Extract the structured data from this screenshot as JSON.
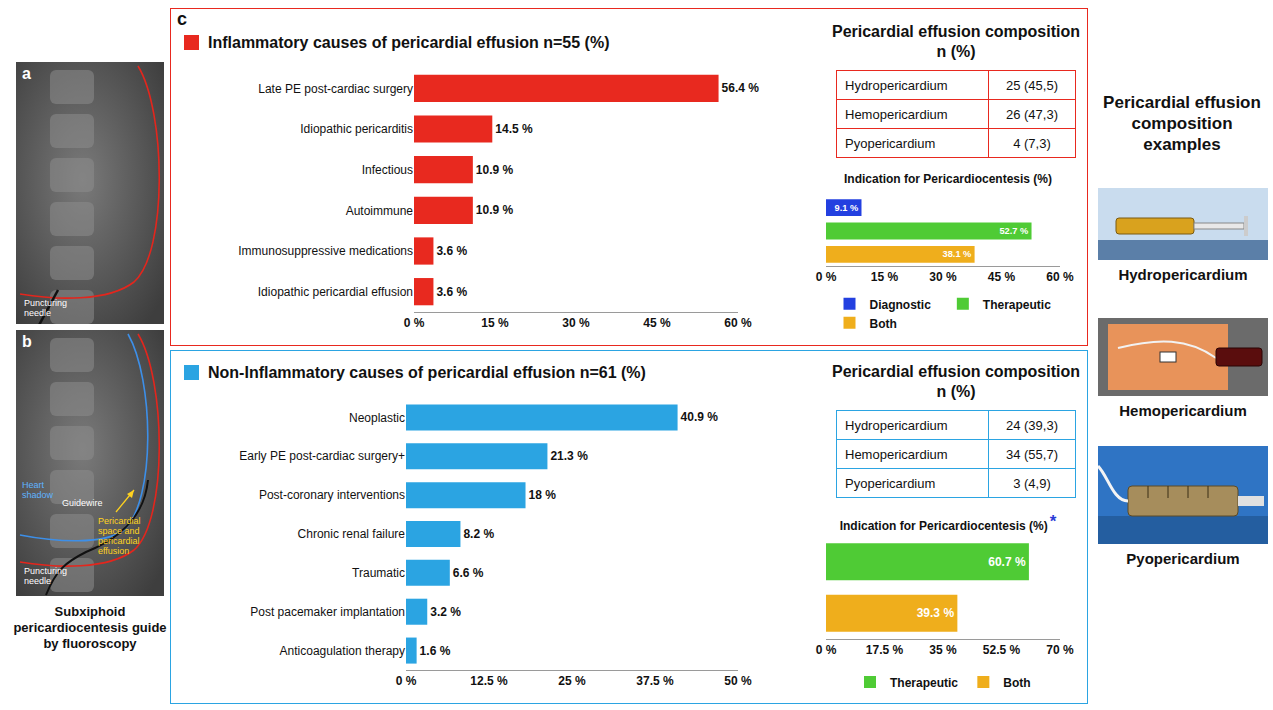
{
  "panel_label": "c",
  "chart_data": [
    {
      "type": "bar",
      "title": "Inflammatory causes of pericardial effusion n=55 (%)",
      "orientation": "horizontal",
      "categories": [
        "Late PE post-cardiac surgery",
        "Idiopathic pericarditis",
        "Infectious",
        "Autoimmune",
        "Immunosuppressive medications",
        "Idiopathic pericardial effusion"
      ],
      "values": [
        56.4,
        14.5,
        10.9,
        10.9,
        3.6,
        3.6
      ],
      "value_labels": [
        "56.4 %",
        "14.5 %",
        "10.9 %",
        "10.9 %",
        "3.6 %",
        "3.6 %"
      ],
      "color": "#E8291F",
      "xlim": [
        0,
        60
      ],
      "xticks": [
        {
          "value": 0,
          "label": "0 %"
        },
        {
          "value": 15,
          "label": "15 %"
        },
        {
          "value": 30,
          "label": "30 %"
        },
        {
          "value": 45,
          "label": "45 %"
        },
        {
          "value": 60,
          "label": "60 %"
        }
      ],
      "grid": false,
      "data_labels": true
    },
    {
      "type": "bar",
      "title": "Indication for Pericardiocentesis (%)",
      "orientation": "horizontal",
      "categories": [
        null,
        null,
        null
      ],
      "series": [
        {
          "name": "Diagnostic",
          "color": "#2340E0",
          "values": [
            9.1,
            null,
            null
          ],
          "value_labels": [
            "9.1 %",
            null,
            null
          ]
        },
        {
          "name": "Therapeutic",
          "color": "#4FCB35",
          "values": [
            null,
            52.7,
            null
          ],
          "value_labels": [
            null,
            "52.7 %",
            null
          ]
        },
        {
          "name": "Both",
          "color": "#EFAE1C",
          "values": [
            null,
            null,
            38.1
          ],
          "value_labels": [
            null,
            null,
            "38.1 %"
          ]
        }
      ],
      "xlim": [
        0,
        60
      ],
      "xticks": [
        {
          "value": 0,
          "label": "0 %"
        },
        {
          "value": 15,
          "label": "15 %"
        },
        {
          "value": 30,
          "label": "30 %"
        },
        {
          "value": 45,
          "label": "45 %"
        },
        {
          "value": 60,
          "label": "60 %"
        }
      ],
      "grid": false,
      "legend": "bottom",
      "tick_labels": "x",
      "data_labels": true
    },
    {
      "type": "bar",
      "title": "Non-Inflammatory causes of pericardial effusion n=61 (%)",
      "orientation": "horizontal",
      "categories": [
        "Neoplastic",
        "Early PE post-cardiac surgery+",
        "Post-coronary interventions",
        "Chronic renal failure",
        "Traumatic",
        "Post pacemaker implantation",
        "Anticoagulation therapy"
      ],
      "values": [
        40.9,
        21.3,
        18,
        8.2,
        6.6,
        3.2,
        1.6
      ],
      "value_labels": [
        "40.9 %",
        "21.3 %",
        "18 %",
        "8.2 %",
        "6.6 %",
        "3.2 %",
        "1.6 %"
      ],
      "color": "#2BA4E2",
      "xlim": [
        0,
        50
      ],
      "xticks": [
        {
          "value": 0,
          "label": "0 %"
        },
        {
          "value": 12.5,
          "label": "12.5 %"
        },
        {
          "value": 25,
          "label": "25 %"
        },
        {
          "value": 37.5,
          "label": "37.5 %"
        },
        {
          "value": 50,
          "label": "50 %"
        }
      ],
      "grid": false,
      "data_labels": true
    },
    {
      "type": "bar",
      "title": "Indication for Pericardiocentesis (%)",
      "annotations": [
        "*"
      ],
      "orientation": "horizontal",
      "categories": [
        null,
        null
      ],
      "series": [
        {
          "name": "Therapeutic",
          "color": "#4FCB35",
          "values": [
            60.7,
            null
          ],
          "value_labels": [
            "60.7 %",
            null
          ]
        },
        {
          "name": "Both",
          "color": "#EFAE1C",
          "values": [
            null,
            39.3
          ],
          "value_labels": [
            null,
            "39.3 %"
          ]
        }
      ],
      "xlim": [
        0,
        70
      ],
      "xticks": [
        {
          "value": 0,
          "label": "0 %"
        },
        {
          "value": 17.5,
          "label": "17.5 %"
        },
        {
          "value": 35,
          "label": "35 %"
        },
        {
          "value": 52.5,
          "label": "52.5 %"
        },
        {
          "value": 70,
          "label": "70 %"
        }
      ],
      "grid": false,
      "legend": "bottom",
      "tick_labels": "x",
      "data_labels": true
    }
  ],
  "composition_tables": [
    {
      "title": "Pericardial effusion composition n (%)",
      "rows": [
        [
          "Hydropericardium",
          "25 (45,5)"
        ],
        [
          "Hemopericardium",
          "26 (47,3)"
        ],
        [
          "Pyopericardium",
          "4 (7,3)"
        ]
      ]
    },
    {
      "title": "Pericardial effusion composition n (%)",
      "rows": [
        [
          "Hydropericardium",
          "24 (39,3)"
        ],
        [
          "Hemopericardium",
          "34 (55,7)"
        ],
        [
          "Pyopericardium",
          "3 (4,9)"
        ]
      ]
    }
  ],
  "fluoroscopy": {
    "caption": "Subxiphoid pericardiocentesis guide by fluoroscopy",
    "images": [
      {
        "label": "a",
        "texts": [
          "Puncturing needle"
        ]
      },
      {
        "label": "b",
        "texts": [
          "Heart shadow",
          "Guidewire",
          "Pericardial space and pericardial effusion",
          "Puncturing needle"
        ]
      }
    ]
  },
  "examples": {
    "title": "Pericardial effusion composition examples",
    "items": [
      "Hydropericardium",
      "Hemopericardium",
      "Pyopericardium"
    ]
  }
}
